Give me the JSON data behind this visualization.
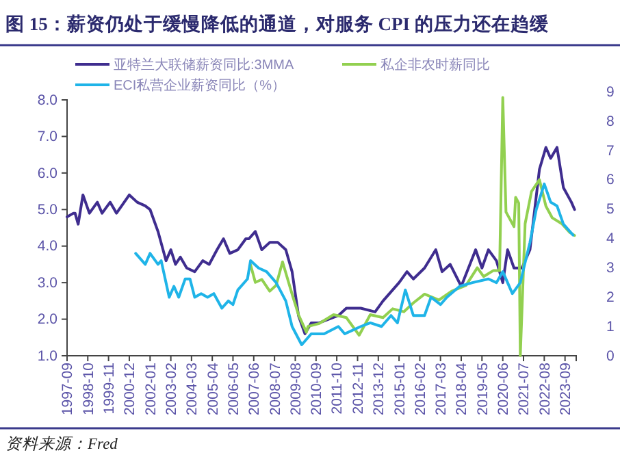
{
  "chart_data": {
    "type": "line",
    "title": "图 15：薪资仍处于缓慢降低的通道，对服务 CPI 的压力还在趋缓",
    "annotations": [
      "资料来源：Fred"
    ],
    "legend": "top",
    "grid": false,
    "line_style": "solid",
    "marker": "none",
    "xlim": [
      "1997-09",
      "2024-04"
    ],
    "xticks": [
      "1997-09",
      "1998-10",
      "1999-11",
      "2000-12",
      "2002-01",
      "2003-02",
      "2004-03",
      "2005-04",
      "2006-05",
      "2007-06",
      "2008-07",
      "2009-08",
      "2010-09",
      "2011-10",
      "2012-11",
      "2013-12",
      "2015-01",
      "2016-02",
      "2017-03",
      "2018-04",
      "2019-05",
      "2020-06",
      "2021-07",
      "2022-08",
      "2023-09"
    ],
    "ylim": [
      1,
      8
    ],
    "yticks": [
      {
        "value": 1,
        "label": "1.0"
      },
      {
        "value": 2,
        "label": "2.0"
      },
      {
        "value": 3,
        "label": "3.0"
      },
      {
        "value": 4,
        "label": "4.0"
      },
      {
        "value": 5,
        "label": "5.0"
      },
      {
        "value": 6,
        "label": "6.0"
      },
      {
        "value": 7,
        "label": "7.0"
      },
      {
        "value": 8,
        "label": "8.0"
      }
    ],
    "y2lim": [
      0,
      9
    ],
    "y2ticks": [
      0,
      1,
      2,
      3,
      4,
      5,
      6,
      7,
      8,
      9
    ],
    "series": [
      {
        "name": "亚特兰大联储薪资同比:3MMA",
        "color": "#3f2d8f",
        "x": [
          "1997-09",
          "1998-01",
          "1998-02",
          "1998-04",
          "1998-07",
          "1998-11",
          "1999-04",
          "1999-07",
          "1999-12",
          "2000-04",
          "2000-12",
          "2001-05",
          "2001-10",
          "2002-01",
          "2002-06",
          "2002-11",
          "2003-02",
          "2003-05",
          "2003-08",
          "2003-12",
          "2004-05",
          "2004-10",
          "2005-02",
          "2005-07",
          "2005-11",
          "2006-03",
          "2006-08",
          "2007-01",
          "2007-03",
          "2007-07",
          "2007-11",
          "2008-04",
          "2008-09",
          "2009-02",
          "2009-06",
          "2009-10",
          "2010-02",
          "2010-06",
          "2010-11",
          "2011-11",
          "2012-04",
          "2013-01",
          "2013-10",
          "2014-03",
          "2015-01",
          "2015-06",
          "2015-10",
          "2016-05",
          "2016-12",
          "2017-04",
          "2017-09",
          "2018-04",
          "2019-01",
          "2019-05",
          "2019-09",
          "2020-02",
          "2020-06",
          "2020-09",
          "2021-01",
          "2021-06",
          "2021-11",
          "2022-05",
          "2022-09",
          "2022-12",
          "2023-04",
          "2023-08",
          "2024-01",
          "2024-03"
        ],
        "values": [
          4.8,
          4.9,
          4.9,
          4.6,
          5.4,
          4.9,
          5.2,
          4.9,
          5.2,
          4.9,
          5.4,
          5.2,
          5.1,
          5.0,
          4.4,
          3.6,
          3.9,
          3.5,
          3.7,
          3.4,
          3.3,
          3.6,
          3.5,
          3.9,
          4.2,
          3.8,
          3.9,
          4.2,
          4.2,
          4.4,
          3.9,
          4.1,
          4.1,
          3.9,
          3.3,
          2.1,
          1.6,
          1.9,
          1.9,
          2.1,
          2.3,
          2.3,
          2.2,
          2.5,
          3.0,
          3.3,
          3.1,
          3.4,
          3.9,
          3.3,
          3.5,
          2.9,
          3.9,
          3.4,
          3.9,
          3.6,
          3.0,
          3.9,
          3.4,
          3.4,
          3.9,
          6.1,
          6.7,
          6.4,
          6.7,
          5.6,
          5.2,
          5.0
        ]
      },
      {
        "name": "私企非农时薪同比",
        "color": "#92d050",
        "axis": "y2",
        "x": [
          "2007-04",
          "2007-07",
          "2007-11",
          "2008-04",
          "2008-08",
          "2008-12",
          "2009-06",
          "2009-10",
          "2010-03",
          "2010-04",
          "2010-11",
          "2011-08",
          "2012-04",
          "2012-12",
          "2013-07",
          "2014-03",
          "2014-09",
          "2015-04",
          "2015-10",
          "2016-05",
          "2017-02",
          "2017-10",
          "2018-07",
          "2019-02",
          "2019-06",
          "2019-12",
          "2020-04",
          "2020-06",
          "2020-08",
          "2021-01",
          "2021-02",
          "2021-04",
          "2021-05",
          "2021-08",
          "2021-12",
          "2022-05",
          "2022-09",
          "2023-01",
          "2023-07",
          "2023-12",
          "2024-03"
        ],
        "values": [
          3.1,
          2.5,
          2.6,
          2.2,
          2.4,
          3.2,
          2.1,
          1.4,
          0.8,
          1.0,
          1.1,
          1.4,
          1.3,
          0.7,
          1.4,
          1.3,
          1.6,
          1.5,
          1.8,
          2.1,
          1.9,
          2.2,
          2.4,
          3.0,
          2.7,
          2.9,
          2.9,
          8.8,
          4.9,
          4.4,
          5.4,
          5.2,
          0.0,
          4.5,
          5.6,
          6.0,
          5.1,
          4.7,
          4.5,
          4.2,
          4.1
        ]
      },
      {
        "name": "ECI私营企业薪资同比（%）",
        "color": "#1fb4e8",
        "x": [
          "2001-04",
          "2001-10",
          "2002-01",
          "2002-06",
          "2002-08",
          "2003-01",
          "2003-04",
          "2003-07",
          "2003-11",
          "2004-02",
          "2004-05",
          "2004-09",
          "2005-01",
          "2005-05",
          "2005-10",
          "2006-02",
          "2006-05",
          "2006-08",
          "2007-02",
          "2007-04",
          "2007-09",
          "2008-02",
          "2008-08",
          "2009-02",
          "2009-06",
          "2009-12",
          "2010-06",
          "2010-08",
          "2011-02",
          "2011-11",
          "2012-03",
          "2013-01",
          "2013-07",
          "2014-02",
          "2014-08",
          "2014-12",
          "2015-05",
          "2015-10",
          "2016-05",
          "2016-09",
          "2017-03",
          "2017-07",
          "2018-03",
          "2018-11",
          "2019-09",
          "2020-02",
          "2020-06",
          "2020-12",
          "2021-05",
          "2021-11",
          "2022-03",
          "2022-08",
          "2022-12",
          "2023-04",
          "2023-08",
          "2024-02"
        ],
        "values": [
          3.8,
          3.5,
          3.8,
          3.5,
          3.6,
          2.6,
          2.9,
          2.6,
          3.1,
          3.1,
          2.6,
          2.7,
          2.6,
          2.7,
          2.3,
          2.5,
          2.4,
          2.8,
          3.1,
          3.6,
          3.4,
          3.3,
          3.0,
          2.5,
          1.8,
          1.3,
          1.6,
          1.6,
          1.6,
          1.8,
          1.6,
          1.8,
          1.9,
          1.8,
          2.1,
          1.9,
          2.8,
          2.1,
          2.1,
          2.6,
          2.4,
          2.6,
          2.9,
          3.0,
          3.1,
          3.0,
          3.3,
          2.7,
          3.0,
          4.1,
          5.0,
          5.7,
          5.2,
          5.1,
          4.6,
          4.3
        ]
      }
    ]
  }
}
